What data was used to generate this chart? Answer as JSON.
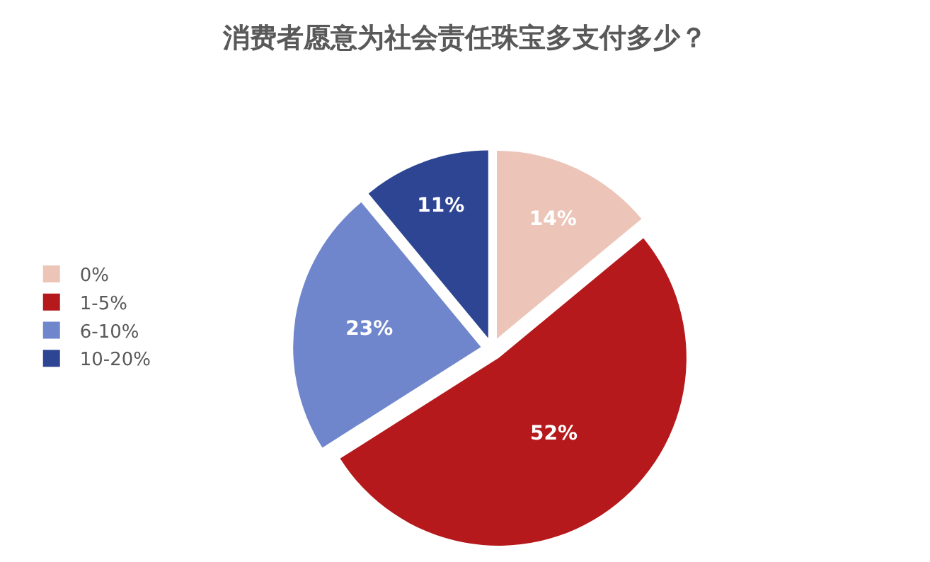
{
  "chart_data": {
    "type": "pie",
    "title": "消费者愿意为社会责任珠宝多支付多少？",
    "categories": [
      "0%",
      "1-5%",
      "6-10%",
      "10-20%"
    ],
    "values": [
      14,
      52,
      23,
      11
    ],
    "value_labels": [
      "14%",
      "52%",
      "23%",
      "11%"
    ],
    "colors": [
      "#ecc5b8",
      "#b5191c",
      "#6f86cc",
      "#2e4593"
    ],
    "legend": "left"
  }
}
